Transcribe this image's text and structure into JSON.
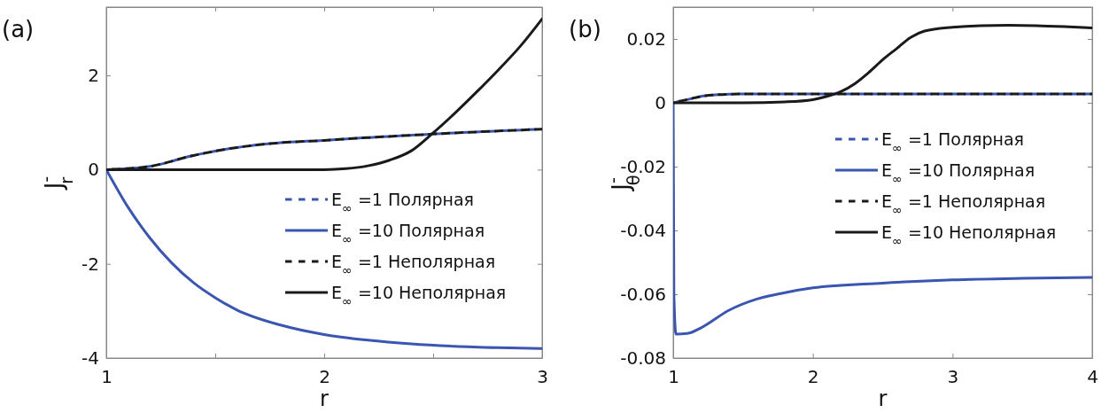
{
  "chart_data": [
    {
      "type": "line",
      "title": "(a)",
      "xlabel": "r",
      "ylabel": "J$^{-}$$_{r}$",
      "xlim": [
        1,
        3
      ],
      "ylim": [
        -4,
        3.45
      ],
      "xticks": [
        1,
        {
          "value": 1.5,
          "label": null
        },
        2,
        {
          "value": 2.5,
          "label": null
        },
        3
      ],
      "yticks": [
        -4,
        -2,
        0,
        2
      ],
      "legend": "right",
      "grid": false,
      "series": [
        {
          "name": "E$_{∞}$ =1 Полярная",
          "color": "#3a56b0",
          "line_style": "dashed",
          "x": [
            1,
            1.2,
            1.4,
            1.6,
            1.8,
            2,
            2.2,
            2.4,
            2.6,
            2.8,
            3
          ],
          "values": [
            0,
            0.07,
            0.3,
            0.47,
            0.57,
            0.62,
            0.68,
            0.73,
            0.78,
            0.82,
            0.86
          ]
        },
        {
          "name": "E$_{∞}$ =10 Полярная",
          "color": "#3a56b0",
          "line_style": "solid",
          "x": [
            1,
            1.1,
            1.2,
            1.3,
            1.4,
            1.5,
            1.6,
            1.8,
            2,
            2.2,
            2.4,
            2.6,
            2.8,
            3
          ],
          "values": [
            0,
            -0.8,
            -1.45,
            -1.98,
            -2.4,
            -2.72,
            -2.98,
            -3.3,
            -3.5,
            -3.62,
            -3.7,
            -3.75,
            -3.78,
            -3.8
          ]
        },
        {
          "name": "E$_{∞}$ =1 Неполярная",
          "color": "#1a1a1a",
          "line_style": "dashed",
          "x": [
            1,
            1.2,
            1.4,
            1.6,
            1.8,
            2,
            2.2,
            2.4,
            2.6,
            2.8,
            3
          ],
          "values": [
            0,
            0.07,
            0.3,
            0.47,
            0.57,
            0.62,
            0.68,
            0.73,
            0.78,
            0.82,
            0.86
          ]
        },
        {
          "name": "E$_{∞}$ =10 Неполярная",
          "color": "#1a1a1a",
          "line_style": "solid",
          "x": [
            1,
            1.5,
            2,
            2.1,
            2.2,
            2.3,
            2.4,
            2.5,
            2.6,
            2.7,
            2.8,
            2.9,
            3
          ],
          "values": [
            0,
            0,
            0,
            0.02,
            0.08,
            0.2,
            0.4,
            0.78,
            1.2,
            1.65,
            2.12,
            2.62,
            3.2
          ]
        }
      ]
    },
    {
      "type": "line",
      "title": "(b)",
      "xlabel": "r",
      "ylabel": "J$^{-}$$_{θ}$",
      "xlim": [
        1,
        4
      ],
      "ylim": [
        -0.08,
        0.03
      ],
      "xticks": [
        1,
        2,
        3,
        4
      ],
      "yticks": [
        -0.08,
        -0.06,
        -0.04,
        -0.02,
        0,
        0.02
      ],
      "legend": "right",
      "grid": false,
      "series": [
        {
          "name": "E$_{∞}$ =1 Полярная",
          "color": "#3a56b0",
          "line_style": "dashed",
          "x": [
            1,
            1.1,
            1.2,
            1.4,
            1.6,
            4
          ],
          "values": [
            0,
            0.001,
            0.002,
            0.0027,
            0.0028,
            0.0028
          ]
        },
        {
          "name": "E$_{∞}$ =10 Полярная",
          "color": "#3a56b0",
          "line_style": "solid",
          "x": [
            1,
            1.005,
            1.02,
            1.1,
            1.2,
            1.4,
            1.6,
            1.8,
            2,
            2.5,
            3,
            3.5,
            4
          ],
          "values": [
            0,
            -0.06,
            -0.0725,
            -0.0723,
            -0.0705,
            -0.065,
            -0.0615,
            -0.0595,
            -0.058,
            -0.0565,
            -0.0555,
            -0.055,
            -0.0547
          ]
        },
        {
          "name": "E$_{∞}$ =1 Неполярная",
          "color": "#1a1a1a",
          "line_style": "dashed",
          "x": [
            1,
            1.1,
            1.2,
            1.4,
            1.6,
            4
          ],
          "values": [
            0,
            0.001,
            0.002,
            0.0027,
            0.0028,
            0.0028
          ]
        },
        {
          "name": "E$_{∞}$ =10 Неполярная",
          "color": "#1a1a1a",
          "line_style": "solid",
          "x": [
            1,
            1.5,
            1.8,
            2,
            2.1,
            2.2,
            2.3,
            2.4,
            2.5,
            2.6,
            2.7,
            2.8,
            3,
            3.2,
            3.4,
            3.6,
            3.8,
            4
          ],
          "values": [
            0,
            0,
            0.0003,
            0.001,
            0.002,
            0.0035,
            0.006,
            0.0095,
            0.0135,
            0.017,
            0.0205,
            0.0225,
            0.0237,
            0.0242,
            0.0243,
            0.0242,
            0.0239,
            0.0235
          ]
        }
      ]
    }
  ]
}
